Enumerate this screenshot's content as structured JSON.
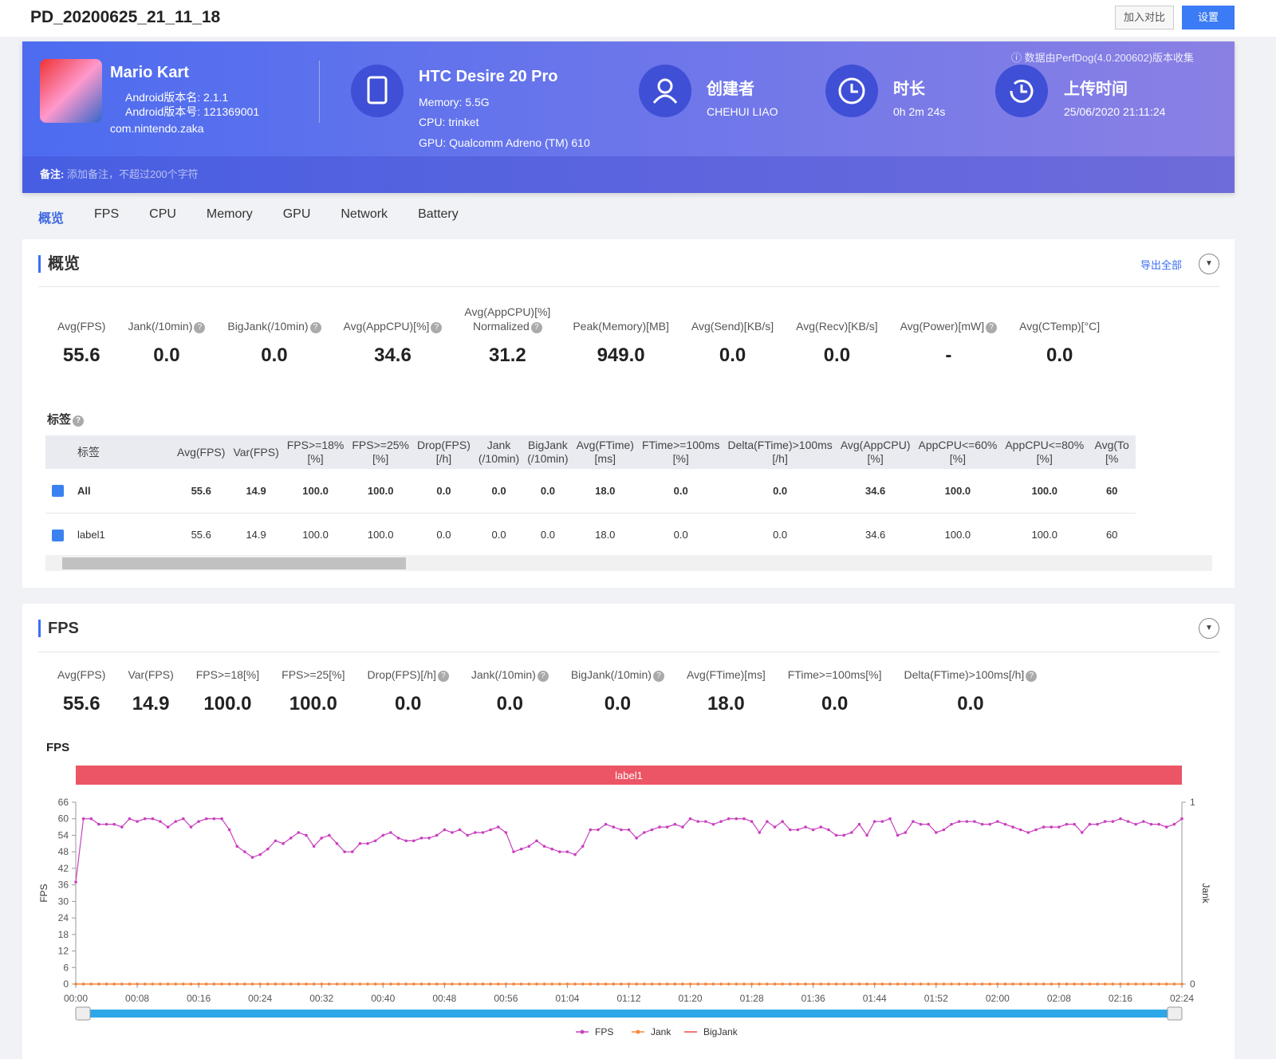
{
  "header": {
    "title": "PD_20200625_21_11_18",
    "compare_button": "加入对比",
    "settings_button": "设置"
  },
  "app": {
    "name": "Mario Kart",
    "version_name": "Android版本名: 2.1.1",
    "version_code": "Android版本号: 121369001",
    "package": "com.nintendo.zaka"
  },
  "device": {
    "name": "HTC Desire 20 Pro",
    "memory": "Memory: 5.5G",
    "cpu": "CPU: trinket",
    "gpu": "GPU: Qualcomm Adreno (TM) 610"
  },
  "creator": {
    "label": "创建者",
    "value": "CHEHUI LIAO"
  },
  "duration": {
    "label": "时长",
    "value": "0h 2m 24s"
  },
  "upload": {
    "label": "上传时间",
    "value": "25/06/2020 21:11:24"
  },
  "source_note": "数据由PerfDog(4.0.200602)版本收集",
  "remark": {
    "label": "备注:",
    "placeholder": "添加备注，不超过200个字符"
  },
  "tabs": [
    "概览",
    "FPS",
    "CPU",
    "Memory",
    "GPU",
    "Network",
    "Battery"
  ],
  "overview": {
    "title": "概览",
    "export": "导出全部",
    "metrics": [
      {
        "label": "Avg(FPS)",
        "value": "55.6"
      },
      {
        "label": "Jank(/10min)",
        "value": "0.0"
      },
      {
        "label": "BigJank(/10min)",
        "value": "0.0"
      },
      {
        "label": "Avg(AppCPU)[%]",
        "value": "34.6"
      },
      {
        "label": "Avg(AppCPU)[%]\nNormalized",
        "value": "31.2"
      },
      {
        "label": "Peak(Memory)[MB]",
        "value": "949.0"
      },
      {
        "label": "Avg(Send)[KB/s]",
        "value": "0.0"
      },
      {
        "label": "Avg(Recv)[KB/s]",
        "value": "0.0"
      },
      {
        "label": "Avg(Power)[mW]",
        "value": "-"
      },
      {
        "label": "Avg(CTemp)[°C]",
        "value": "0.0"
      }
    ]
  },
  "tags": {
    "title": "标签",
    "columns": [
      "标签",
      "Avg(FPS)",
      "Var(FPS)",
      "FPS>=18%\n[%]",
      "FPS>=25%\n[%]",
      "Drop(FPS)\n[/h]",
      "Jank\n(/10min)",
      "BigJank\n(/10min)",
      "Avg(FTime)\n[ms]",
      "FTime>=100ms\n[%]",
      "Delta(FTime)>100ms\n[/h]",
      "Avg(AppCPU)\n[%]",
      "AppCPU<=60%\n[%]",
      "AppCPU<=80%\n[%]",
      "Avg(To\n[%"
    ],
    "rows": [
      [
        "All",
        "55.6",
        "14.9",
        "100.0",
        "100.0",
        "0.0",
        "0.0",
        "0.0",
        "18.0",
        "0.0",
        "0.0",
        "34.6",
        "100.0",
        "100.0",
        "60"
      ],
      [
        "label1",
        "55.6",
        "14.9",
        "100.0",
        "100.0",
        "0.0",
        "0.0",
        "0.0",
        "18.0",
        "0.0",
        "0.0",
        "34.6",
        "100.0",
        "100.0",
        "60"
      ]
    ]
  },
  "fps_section": {
    "title": "FPS",
    "metrics": [
      {
        "label": "Avg(FPS)",
        "value": "55.6"
      },
      {
        "label": "Var(FPS)",
        "value": "14.9"
      },
      {
        "label": "FPS>=18[%]",
        "value": "100.0"
      },
      {
        "label": "FPS>=25[%]",
        "value": "100.0"
      },
      {
        "label": "Drop(FPS)[/h]",
        "value": "0.0"
      },
      {
        "label": "Jank(/10min)",
        "value": "0.0"
      },
      {
        "label": "BigJank(/10min)",
        "value": "0.0"
      },
      {
        "label": "Avg(FTime)[ms]",
        "value": "18.0"
      },
      {
        "label": "FTime>=100ms[%]",
        "value": "0.0"
      },
      {
        "label": "Delta(FTime)>100ms[/h]",
        "value": "0.0"
      }
    ]
  },
  "chart_data": {
    "type": "line",
    "title": "FPS",
    "annotation": "label1",
    "y_label": "FPS",
    "y2_label": "Jank",
    "x": [
      0,
      1,
      2,
      3,
      4,
      5,
      6,
      7,
      8,
      9,
      10,
      11,
      12,
      13,
      14,
      15,
      16,
      17,
      18,
      19,
      20,
      21,
      22,
      23,
      24,
      25,
      26,
      27,
      28,
      29,
      30,
      31,
      32,
      33,
      34,
      35,
      36,
      37,
      38,
      39,
      40,
      41,
      42,
      43,
      44,
      45,
      46,
      47,
      48,
      49,
      50,
      51,
      52,
      53,
      54,
      55,
      56,
      57,
      58,
      59,
      60,
      61,
      62,
      63,
      64,
      65,
      66,
      67,
      68,
      69,
      70,
      71,
      72,
      73,
      74,
      75,
      76,
      77,
      78,
      79,
      80,
      81,
      82,
      83,
      84,
      85,
      86,
      87,
      88,
      89,
      90,
      91,
      92,
      93,
      94,
      95,
      96,
      97,
      98,
      99,
      100,
      101,
      102,
      103,
      104,
      105,
      106,
      107,
      108,
      109,
      110,
      111,
      112,
      113,
      114,
      115,
      116,
      117,
      118,
      119,
      120,
      121,
      122,
      123,
      124,
      125,
      126,
      127,
      128,
      129,
      130,
      131,
      132,
      133,
      134,
      135,
      136,
      137,
      138,
      139,
      140,
      141,
      142,
      143,
      144
    ],
    "series": [
      {
        "name": "FPS",
        "color": "#c940bf",
        "values": [
          37,
          60,
          60,
          58,
          58,
          58,
          57,
          60,
          59,
          60,
          60,
          59,
          57,
          59,
          60,
          57,
          59,
          60,
          60,
          60,
          56,
          50,
          48,
          46,
          47,
          49,
          52,
          51,
          53,
          55,
          54,
          50,
          53,
          54,
          51,
          48,
          48,
          51,
          51,
          52,
          54,
          55,
          53,
          52,
          52,
          53,
          53,
          54,
          56,
          55,
          56,
          54,
          55,
          55,
          56,
          57,
          55,
          48,
          49,
          50,
          52,
          50,
          49,
          48,
          48,
          47,
          50,
          56,
          56,
          58,
          57,
          56,
          56,
          53,
          55,
          56,
          57,
          57,
          58,
          57,
          60,
          59,
          59,
          58,
          59,
          60,
          60,
          60,
          59,
          55,
          59,
          57,
          59,
          56,
          56,
          57,
          56,
          57,
          56,
          54,
          54,
          55,
          58,
          54,
          59,
          59,
          60,
          54,
          55,
          59,
          58,
          58,
          55,
          56,
          58,
          59,
          59,
          59,
          58,
          58,
          59,
          58,
          57,
          56,
          55,
          56,
          57,
          57,
          57,
          58,
          58,
          55,
          58,
          58,
          59,
          59,
          60,
          59,
          58,
          59,
          58,
          58,
          57,
          58,
          60
        ]
      },
      {
        "name": "Jank",
        "color": "#f5893a",
        "axis": "y2",
        "values": [
          0,
          0,
          0,
          0,
          0,
          0,
          0,
          0,
          0,
          0,
          0,
          0,
          0,
          0,
          0,
          0,
          0,
          0,
          0,
          0,
          0,
          0,
          0,
          0,
          0,
          0,
          0,
          0,
          0,
          0,
          0,
          0,
          0,
          0,
          0,
          0,
          0,
          0,
          0,
          0,
          0,
          0,
          0,
          0,
          0,
          0,
          0,
          0,
          0,
          0,
          0,
          0,
          0,
          0,
          0,
          0,
          0,
          0,
          0,
          0,
          0,
          0,
          0,
          0,
          0,
          0,
          0,
          0,
          0,
          0,
          0,
          0,
          0,
          0,
          0,
          0,
          0,
          0,
          0,
          0,
          0,
          0,
          0,
          0,
          0,
          0,
          0,
          0,
          0,
          0,
          0,
          0,
          0,
          0,
          0,
          0,
          0,
          0,
          0,
          0,
          0,
          0,
          0,
          0,
          0,
          0,
          0,
          0,
          0,
          0,
          0,
          0,
          0,
          0,
          0,
          0,
          0,
          0,
          0,
          0,
          0,
          0,
          0,
          0,
          0,
          0,
          0,
          0,
          0,
          0,
          0,
          0,
          0,
          0,
          0,
          0,
          0,
          0,
          0,
          0,
          0,
          0,
          0,
          0,
          0
        ]
      },
      {
        "name": "BigJank",
        "color": "#ee4b4b",
        "axis": "y2",
        "values": [
          0,
          0,
          0,
          0,
          0,
          0,
          0,
          0,
          0,
          0,
          0,
          0,
          0,
          0,
          0,
          0,
          0,
          0,
          0,
          0,
          0,
          0,
          0,
          0,
          0,
          0,
          0,
          0,
          0,
          0,
          0,
          0,
          0,
          0,
          0,
          0,
          0,
          0,
          0,
          0,
          0,
          0,
          0,
          0,
          0,
          0,
          0,
          0,
          0,
          0,
          0,
          0,
          0,
          0,
          0,
          0,
          0,
          0,
          0,
          0,
          0,
          0,
          0,
          0,
          0,
          0,
          0,
          0,
          0,
          0,
          0,
          0,
          0,
          0,
          0,
          0,
          0,
          0,
          0,
          0,
          0,
          0,
          0,
          0,
          0,
          0,
          0,
          0,
          0,
          0,
          0,
          0,
          0,
          0,
          0,
          0,
          0,
          0,
          0,
          0,
          0,
          0,
          0,
          0,
          0,
          0,
          0,
          0,
          0,
          0,
          0,
          0,
          0,
          0,
          0,
          0,
          0,
          0,
          0,
          0,
          0,
          0,
          0,
          0,
          0,
          0,
          0,
          0,
          0,
          0,
          0,
          0,
          0,
          0,
          0,
          0,
          0,
          0,
          0,
          0,
          0,
          0,
          0,
          0,
          0
        ]
      }
    ],
    "xlim": [
      0,
      144
    ],
    "xticks": [
      {
        "value": 0,
        "label": "00:00"
      },
      {
        "value": 8,
        "label": "00:08"
      },
      {
        "value": 16,
        "label": "00:16"
      },
      {
        "value": 24,
        "label": "00:24"
      },
      {
        "value": 32,
        "label": "00:32"
      },
      {
        "value": 40,
        "label": "00:40"
      },
      {
        "value": 48,
        "label": "00:48"
      },
      {
        "value": 56,
        "label": "00:56"
      },
      {
        "value": 64,
        "label": "01:04"
      },
      {
        "value": 72,
        "label": "01:12"
      },
      {
        "value": 80,
        "label": "01:20"
      },
      {
        "value": 88,
        "label": "01:28"
      },
      {
        "value": 96,
        "label": "01:36"
      },
      {
        "value": 104,
        "label": "01:44"
      },
      {
        "value": 112,
        "label": "01:52"
      },
      {
        "value": 120,
        "label": "02:00"
      },
      {
        "value": 128,
        "label": "02:08"
      },
      {
        "value": 136,
        "label": "02:16"
      },
      {
        "value": 144,
        "label": "02:24"
      }
    ],
    "ylim": [
      0,
      66
    ],
    "yticks": [
      0,
      6,
      12,
      18,
      24,
      30,
      36,
      42,
      48,
      54,
      60,
      66
    ],
    "y2lim": [
      0,
      1
    ],
    "y2ticks": [
      0,
      1
    ],
    "grid": false
  }
}
